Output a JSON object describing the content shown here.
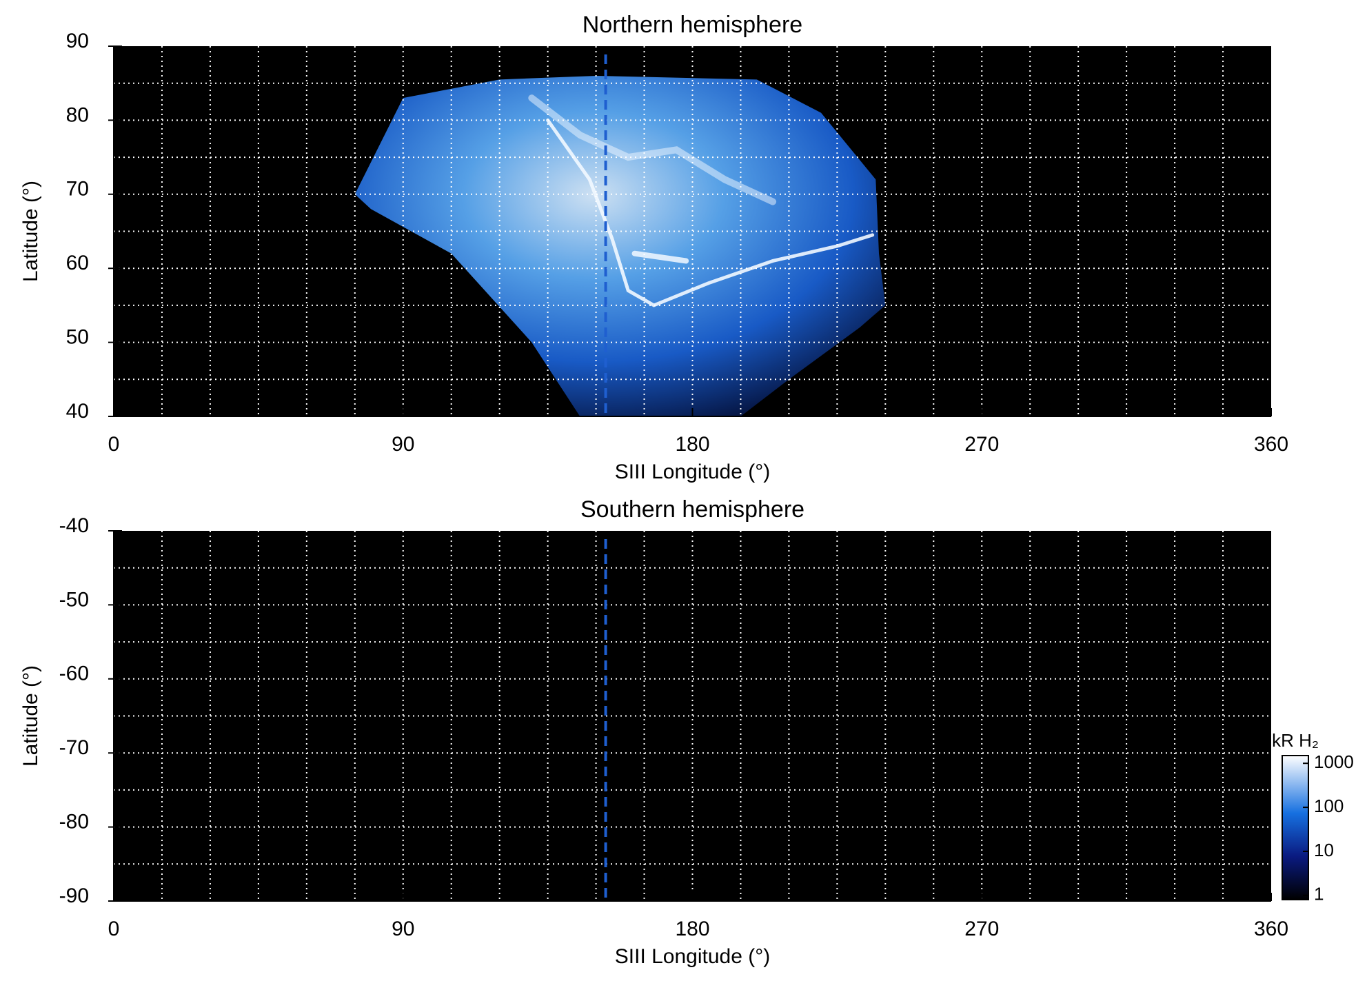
{
  "chart_data": [
    {
      "type": "image",
      "title": "Northern hemisphere",
      "xlabel": "SIII Longitude (°)",
      "ylabel": "Latitude (°)",
      "xlim": [
        0,
        360
      ],
      "xticks": [
        0,
        90,
        180,
        270,
        360
      ],
      "ylim": [
        40,
        90
      ],
      "yticks": [
        40,
        50,
        60,
        70,
        80,
        90
      ],
      "xgrid": [
        15,
        30,
        45,
        60,
        75,
        90,
        105,
        120,
        135,
        150,
        165,
        180,
        195,
        210,
        225,
        240,
        255,
        270,
        285,
        300,
        315,
        330,
        345
      ],
      "ygrid": [
        45,
        50,
        55,
        60,
        65,
        70,
        75,
        80,
        85
      ],
      "reference_longitude": 153,
      "reference_color": "#1f5fd0",
      "emission": true
    },
    {
      "type": "image",
      "title": "Southern hemisphere",
      "xlabel": "SIII Longitude (°)",
      "ylabel": "Latitude (°)",
      "xlim": [
        0,
        360
      ],
      "xticks": [
        0,
        90,
        180,
        270,
        360
      ],
      "ylim": [
        -90,
        -40
      ],
      "yticks": [
        -90,
        -80,
        -70,
        -60,
        -50,
        -40
      ],
      "xgrid": [
        15,
        30,
        45,
        60,
        75,
        90,
        105,
        120,
        135,
        150,
        165,
        180,
        195,
        210,
        225,
        240,
        255,
        270,
        285,
        300,
        315,
        330,
        345
      ],
      "ygrid": [
        -85,
        -80,
        -75,
        -70,
        -65,
        -60,
        -55,
        -50,
        -45
      ],
      "reference_longitude": 153,
      "reference_color": "#1f5fd0",
      "emission": false,
      "colorbar": {
        "label": "kR H₂",
        "scale": "log",
        "lim": [
          0.8,
          1500
        ],
        "ticks": [
          1,
          10,
          100,
          1000
        ]
      }
    }
  ]
}
